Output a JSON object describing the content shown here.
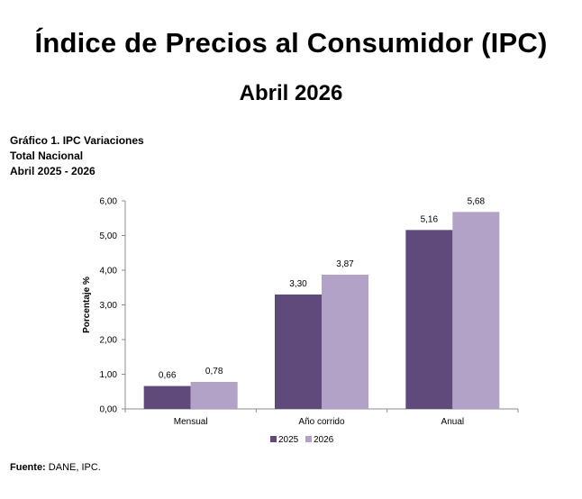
{
  "header": {
    "title": "Índice de Precios al Consumidor (IPC)",
    "subtitle": "Abril 2026"
  },
  "caption": {
    "line1": "Gráfico 1. IPC Variaciones",
    "line2": "Total Nacional",
    "line3": "Abril 2025 - 2026"
  },
  "chart_data": {
    "type": "bar",
    "categories": [
      "Mensual",
      "Año corrido",
      "Anual"
    ],
    "series": [
      {
        "name": "2025",
        "values": [
          0.66,
          3.3,
          5.16
        ],
        "labels": [
          "0,66",
          "3,30",
          "5,16"
        ],
        "color": "#604a7b"
      },
      {
        "name": "2026",
        "values": [
          0.78,
          3.87,
          5.68
        ],
        "labels": [
          "0,78",
          "3,87",
          "5,68"
        ],
        "color": "#b3a2c7"
      }
    ],
    "ylabel": "Porcentaje %",
    "xlabel": "",
    "ylim": [
      0,
      6
    ],
    "yticks": [
      0,
      1,
      2,
      3,
      4,
      5,
      6
    ],
    "ytick_labels": [
      "0,00",
      "1,00",
      "2,00",
      "3,00",
      "4,00",
      "5,00",
      "6,00"
    ],
    "grid": false,
    "legend_position": "bottom-center"
  },
  "footer": {
    "source_label": "Fuente:",
    "source_text": " DANE, IPC."
  }
}
